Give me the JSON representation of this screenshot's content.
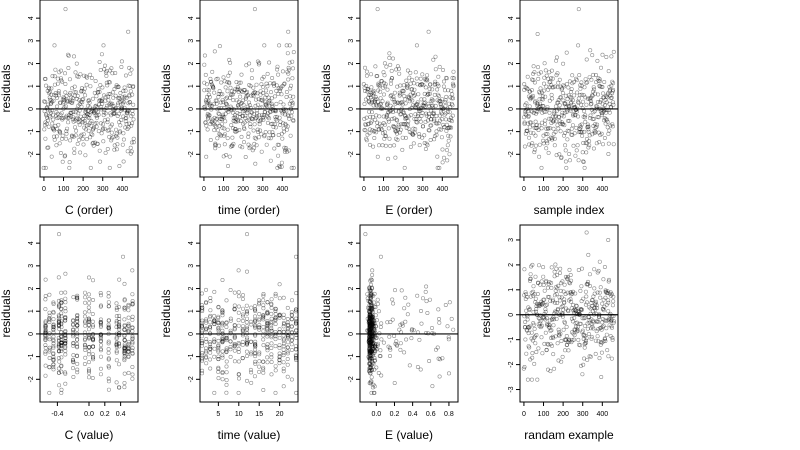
{
  "chart_data": [
    {
      "type": "scatter",
      "xlabel": "C (order)",
      "ylabel": "residuals",
      "xlim": [
        -20,
        480
      ],
      "ylim": [
        -3,
        4.8
      ],
      "xticks": [
        0,
        100,
        200,
        300,
        400
      ],
      "xtick_labels": [
        "0",
        "100",
        "200",
        "300",
        "400"
      ],
      "yticks": [
        -2,
        -1,
        0,
        1,
        2,
        3,
        4
      ],
      "ytick_labels": [
        "-2",
        "-1",
        "0",
        "1",
        "2",
        "3",
        "4"
      ],
      "hline": 0,
      "n_points": 460,
      "x_range": [
        0,
        460
      ],
      "y_mean": 0,
      "y_sd": 1.0,
      "outliers": [
        [
          110,
          4.4
        ],
        [
          430,
          3.4
        ]
      ]
    },
    {
      "type": "scatter",
      "xlabel": "time (order)",
      "ylabel": "residuals",
      "xlim": [
        -20,
        480
      ],
      "ylim": [
        -3,
        4.8
      ],
      "xticks": [
        0,
        100,
        200,
        300,
        400
      ],
      "xtick_labels": [
        "0",
        "100",
        "200",
        "300",
        "400"
      ],
      "yticks": [
        -2,
        -1,
        0,
        1,
        2,
        3,
        4
      ],
      "ytick_labels": [
        "-2",
        "-1",
        "0",
        "1",
        "2",
        "3",
        "4"
      ],
      "hline": 0,
      "n_points": 460,
      "x_range": [
        0,
        460
      ],
      "y_mean": 0,
      "y_sd": 1.0,
      "outliers": [
        [
          260,
          4.4
        ],
        [
          430,
          3.4
        ]
      ]
    },
    {
      "type": "scatter",
      "xlabel": "E (order)",
      "ylabel": "residuals",
      "xlim": [
        -20,
        480
      ],
      "ylim": [
        -3,
        4.8
      ],
      "xticks": [
        0,
        100,
        200,
        300,
        400
      ],
      "xtick_labels": [
        "0",
        "100",
        "200",
        "300",
        "400"
      ],
      "yticks": [
        -2,
        -1,
        0,
        1,
        2,
        3,
        4
      ],
      "ytick_labels": [
        "-2",
        "-1",
        "0",
        "1",
        "2",
        "3",
        "4"
      ],
      "hline": 0,
      "n_points": 460,
      "x_range": [
        0,
        460
      ],
      "y_mean": 0,
      "y_sd": 1.0,
      "outliers": [
        [
          70,
          4.4
        ],
        [
          330,
          3.4
        ]
      ]
    },
    {
      "type": "scatter",
      "xlabel": "sample index",
      "ylabel": "residuals",
      "xlim": [
        -20,
        480
      ],
      "ylim": [
        -3,
        4.8
      ],
      "xticks": [
        0,
        100,
        200,
        300,
        400
      ],
      "xtick_labels": [
        "0",
        "100",
        "200",
        "300",
        "400"
      ],
      "yticks": [
        -2,
        -1,
        0,
        1,
        2,
        3,
        4
      ],
      "ytick_labels": [
        "-2",
        "-1",
        "0",
        "1",
        "2",
        "3",
        "4"
      ],
      "hline": 0,
      "n_points": 460,
      "x_range": [
        0,
        460
      ],
      "y_mean": 0,
      "y_sd": 1.0,
      "outliers": [
        [
          280,
          4.4
        ],
        [
          70,
          3.3
        ]
      ]
    },
    {
      "type": "scatter",
      "xlabel": "C (value)",
      "ylabel": "residuals",
      "xlim": [
        -0.62,
        0.62
      ],
      "ylim": [
        -3,
        4.8
      ],
      "xticks": [
        -0.4,
        0.0,
        0.2,
        0.4
      ],
      "xtick_labels": [
        "-0.4",
        "0.0",
        "0.2",
        "0.4"
      ],
      "yticks": [
        -2,
        -1,
        0,
        1,
        2,
        3,
        4
      ],
      "ytick_labels": [
        "-2",
        "-1",
        "0",
        "1",
        "2",
        "3",
        "4"
      ],
      "hline": 0,
      "n_points": 460,
      "x_levels": [
        -0.55,
        -0.5,
        -0.45,
        -0.38,
        -0.35,
        -0.3,
        -0.2,
        -0.15,
        -0.05,
        0.0,
        0.05,
        0.15,
        0.25,
        0.35,
        0.38,
        0.45,
        0.5,
        0.55
      ],
      "y_mean": 0,
      "y_sd": 1.0,
      "outliers": [
        [
          -0.38,
          4.4
        ],
        [
          0.43,
          3.4
        ]
      ]
    },
    {
      "type": "scatter",
      "xlabel": "time (value)",
      "ylabel": "residuals",
      "xlim": [
        0.5,
        24.5
      ],
      "ylim": [
        -3,
        4.8
      ],
      "xticks": [
        5,
        10,
        15,
        20
      ],
      "xtick_labels": [
        "5",
        "10",
        "15",
        "20"
      ],
      "yticks": [
        -2,
        -1,
        0,
        1,
        2,
        3,
        4
      ],
      "ytick_labels": [
        "-2",
        "-1",
        "0",
        "1",
        "2",
        "3",
        "4"
      ],
      "hline": 0,
      "n_points": 460,
      "x_levels": [
        1,
        2,
        3,
        4,
        5,
        6,
        7,
        8,
        9,
        10,
        11,
        12,
        13,
        14,
        15,
        16,
        17,
        18,
        19,
        20,
        21,
        22,
        23,
        24
      ],
      "y_mean": 0,
      "y_sd": 1.0,
      "outliers": [
        [
          12,
          4.4
        ],
        [
          24,
          3.4
        ]
      ]
    },
    {
      "type": "scatter",
      "xlabel": "E (value)",
      "ylabel": "residuals",
      "xlim": [
        -0.18,
        0.9
      ],
      "ylim": [
        -3,
        4.8
      ],
      "xticks": [
        0.0,
        0.2,
        0.4,
        0.6,
        0.8
      ],
      "xtick_labels": [
        "0.0",
        "0.2",
        "0.4",
        "0.6",
        "0.8"
      ],
      "yticks": [
        -2,
        -1,
        0,
        1,
        2,
        3,
        4
      ],
      "ytick_labels": [
        "-2",
        "-1",
        "0",
        "1",
        "2",
        "3",
        "4"
      ],
      "hline": 0,
      "n_points": 460,
      "x_range": [
        -0.1,
        0.85
      ],
      "y_mean": 0,
      "y_sd": 1.0,
      "outliers": [
        [
          -0.12,
          4.4
        ],
        [
          0.05,
          3.4
        ]
      ]
    },
    {
      "type": "scatter",
      "xlabel": "randam example",
      "ylabel": "residuals",
      "xlim": [
        -20,
        480
      ],
      "ylim": [
        -3.5,
        3.6
      ],
      "xticks": [
        0,
        100,
        200,
        300,
        400
      ],
      "xtick_labels": [
        "0",
        "100",
        "200",
        "300",
        "400"
      ],
      "yticks": [
        -3,
        -2,
        -1,
        0,
        1,
        2,
        3
      ],
      "ytick_labels": [
        "-3",
        "-2",
        "-1",
        "0",
        "1",
        "2",
        "3"
      ],
      "hline": 0,
      "n_points": 460,
      "x_range": [
        0,
        460
      ],
      "y_mean": 0,
      "y_sd": 1.0,
      "outliers": [
        [
          320,
          3.3
        ],
        [
          430,
          3.0
        ]
      ]
    }
  ]
}
